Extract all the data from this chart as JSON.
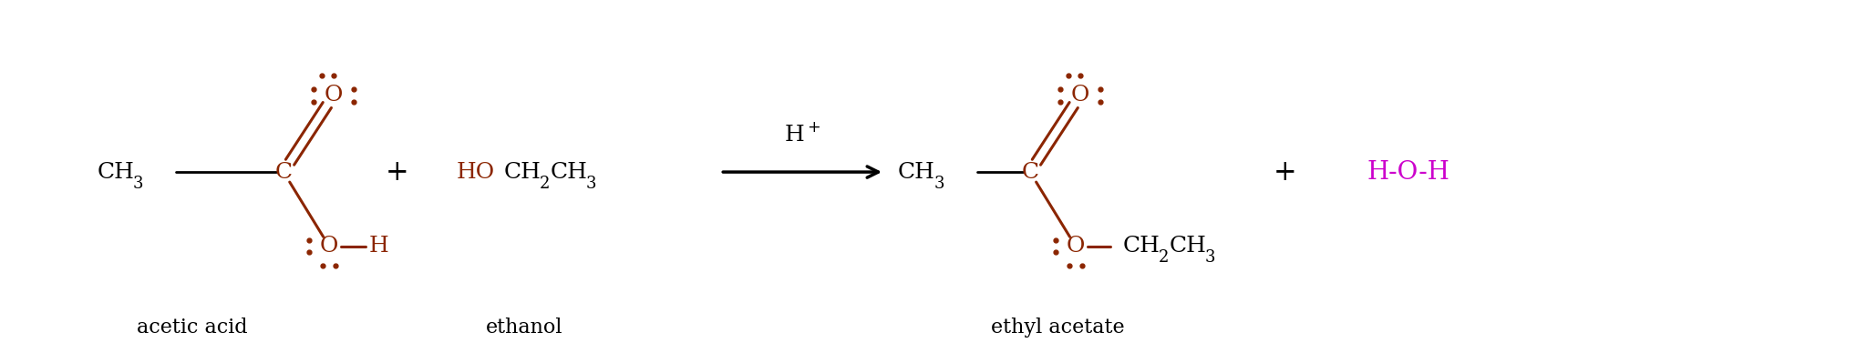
{
  "bg_color": "#ffffff",
  "dark_red": "#8B2500",
  "black": "#000000",
  "magenta": "#CC00CC",
  "label_acetic": "acetic acid",
  "label_ethanol": "ethanol",
  "label_ethyl": "ethyl acetate",
  "catalyst": "H⁺",
  "figsize": [
    20.48,
    3.99
  ],
  "dpi": 100
}
